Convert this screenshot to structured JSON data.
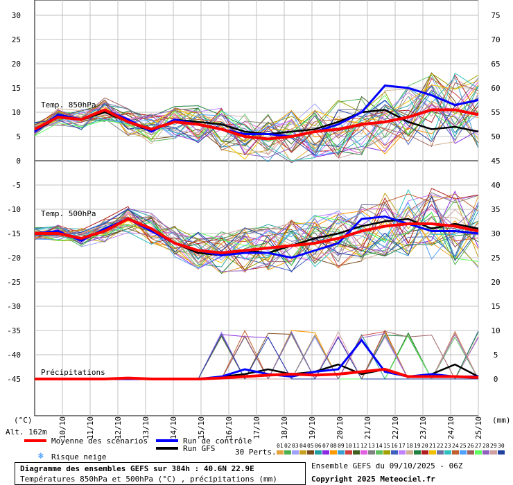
{
  "chart_data": {
    "type": "line",
    "title": "Diagramme des ensembles GEFS sur 384h : 40.6N 22.9E",
    "subtitle": "Températures 850hPa et 500hPa (°C) , précipitations (mm)",
    "left_axis": {
      "unit": "(°C)",
      "ylim": [
        -45,
        30
      ],
      "ticks": [
        30,
        25,
        20,
        15,
        10,
        5,
        0,
        -5,
        -10,
        -15,
        -20,
        -25,
        -30,
        -35,
        -40,
        -45
      ]
    },
    "right_axis": {
      "unit": "(mm)",
      "ylim": [
        0,
        75
      ],
      "ticks": [
        75,
        70,
        65,
        60,
        55,
        50,
        45,
        40,
        35,
        30,
        25,
        20,
        15,
        10,
        5,
        0
      ]
    },
    "x_ticks": [
      "10/10",
      "11/10",
      "12/10",
      "13/10",
      "14/10",
      "15/10",
      "16/10",
      "17/10",
      "18/10",
      "19/10",
      "20/10",
      "21/10",
      "22/10",
      "23/10",
      "24/10",
      "25/10"
    ],
    "panel_labels": {
      "t850": "Temp. 850hPa",
      "t500": "Temp. 500hPa",
      "precip": "Précipitations"
    },
    "grid": true,
    "t850": {
      "mean": [
        6.5,
        9.0,
        8.5,
        10.5,
        8.0,
        6.5,
        8.0,
        7.5,
        6.5,
        5.0,
        4.5,
        5.0,
        6.0,
        6.5,
        7.5,
        8.0,
        9.0,
        10.5,
        10.5,
        9.5
      ],
      "control": [
        6.0,
        9.5,
        8.5,
        10.5,
        8.5,
        6.0,
        8.5,
        7.5,
        6.5,
        5.5,
        5.5,
        5.0,
        6.0,
        7.5,
        10.0,
        15.5,
        15.0,
        13.5,
        11.5,
        12.5
      ],
      "gfs": [
        6.0,
        9.0,
        8.5,
        10.0,
        8.0,
        6.0,
        8.5,
        8.0,
        7.5,
        6.0,
        5.5,
        6.0,
        6.5,
        8.0,
        10.0,
        10.5,
        8.0,
        6.5,
        7.0,
        6.0
      ]
    },
    "t500": {
      "mean": [
        -15.0,
        -15.0,
        -16.0,
        -14.5,
        -12.0,
        -14.0,
        -17.0,
        -18.5,
        -19.0,
        -18.5,
        -18.0,
        -17.5,
        -17.0,
        -16.0,
        -14.5,
        -13.5,
        -13.0,
        -13.0,
        -13.5,
        -14.5
      ],
      "control": [
        -15.0,
        -14.5,
        -16.5,
        -14.0,
        -12.0,
        -14.5,
        -17.0,
        -18.5,
        -19.5,
        -19.0,
        -19.0,
        -20.0,
        -18.5,
        -17.0,
        -12.0,
        -11.5,
        -13.0,
        -14.5,
        -14.5,
        -15.0
      ],
      "gfs": [
        -15.0,
        -15.0,
        -16.0,
        -14.5,
        -12.0,
        -14.0,
        -17.0,
        -19.0,
        -19.5,
        -18.5,
        -19.0,
        -17.5,
        -16.0,
        -15.0,
        -13.5,
        -12.5,
        -12.0,
        -14.0,
        -13.0,
        -14.0
      ]
    },
    "precip": {
      "mean": [
        0,
        0,
        0,
        0,
        0.2,
        0,
        0,
        0,
        0.2,
        0.5,
        0.8,
        1.0,
        0.8,
        1.0,
        1.5,
        2.0,
        0.5,
        0.5,
        0.5,
        0.3
      ],
      "control": [
        0,
        0,
        0,
        0,
        0,
        0,
        0,
        0,
        0.5,
        2.0,
        1.0,
        0.5,
        1.5,
        2.0,
        8.0,
        1.5,
        0.5,
        1.0,
        0.5,
        0.5
      ],
      "gfs": [
        0,
        0,
        0,
        0,
        0,
        0,
        0,
        0,
        0.5,
        1.0,
        2.0,
        1.0,
        1.5,
        3.0,
        1.0,
        2.0,
        0.5,
        1.0,
        3.0,
        0.5
      ]
    },
    "perturbation_count": 30,
    "perturbation_colors": [
      "#e6a23c",
      "#4caf50",
      "#a0a0ff",
      "#c8a020",
      "#7a4a20",
      "#20a0a0",
      "#8a2be2",
      "#ff9900",
      "#3aa0d0",
      "#d04040",
      "#406020",
      "#e060e0",
      "#808080",
      "#60c060",
      "#a0a000",
      "#4060c0",
      "#c080ff",
      "#d0b090",
      "#208040",
      "#b02020",
      "#f0c000",
      "#7070a0",
      "#30c0c0",
      "#c06030",
      "#50a0ff",
      "#a06060",
      "#60ff60",
      "#9060c0",
      "#d0a0a0",
      "#2040a0"
    ]
  },
  "labels": {
    "altitude": "Alt. 162m",
    "left_unit": "(°C)",
    "right_unit": "(mm)",
    "legend_mean": "Moyenne des scénarios",
    "legend_control": "Run de contrôle",
    "legend_gfs": "Run GFS",
    "legend_snow": "Risque neige",
    "perturbations": "30 Perts.",
    "perturbation_numbers": [
      "01",
      "02",
      "03",
      "04",
      "05",
      "06",
      "07",
      "08",
      "09",
      "10",
      "11",
      "12",
      "13",
      "14",
      "15",
      "16",
      "17",
      "18",
      "19",
      "20",
      "21",
      "22",
      "23",
      "24",
      "25",
      "26",
      "27",
      "28",
      "29",
      "30"
    ],
    "ensemble_run": "Ensemble GEFS du 09/10/2025 - 06Z",
    "copyright": "Copyright 2025 Meteociel.fr",
    "snow_icon": "snowflake-icon"
  },
  "colors": {
    "mean": "#ff0000",
    "control": "#0000ff",
    "gfs": "#000000",
    "grid": "#c0c0c0",
    "snow": "#3090ff"
  }
}
